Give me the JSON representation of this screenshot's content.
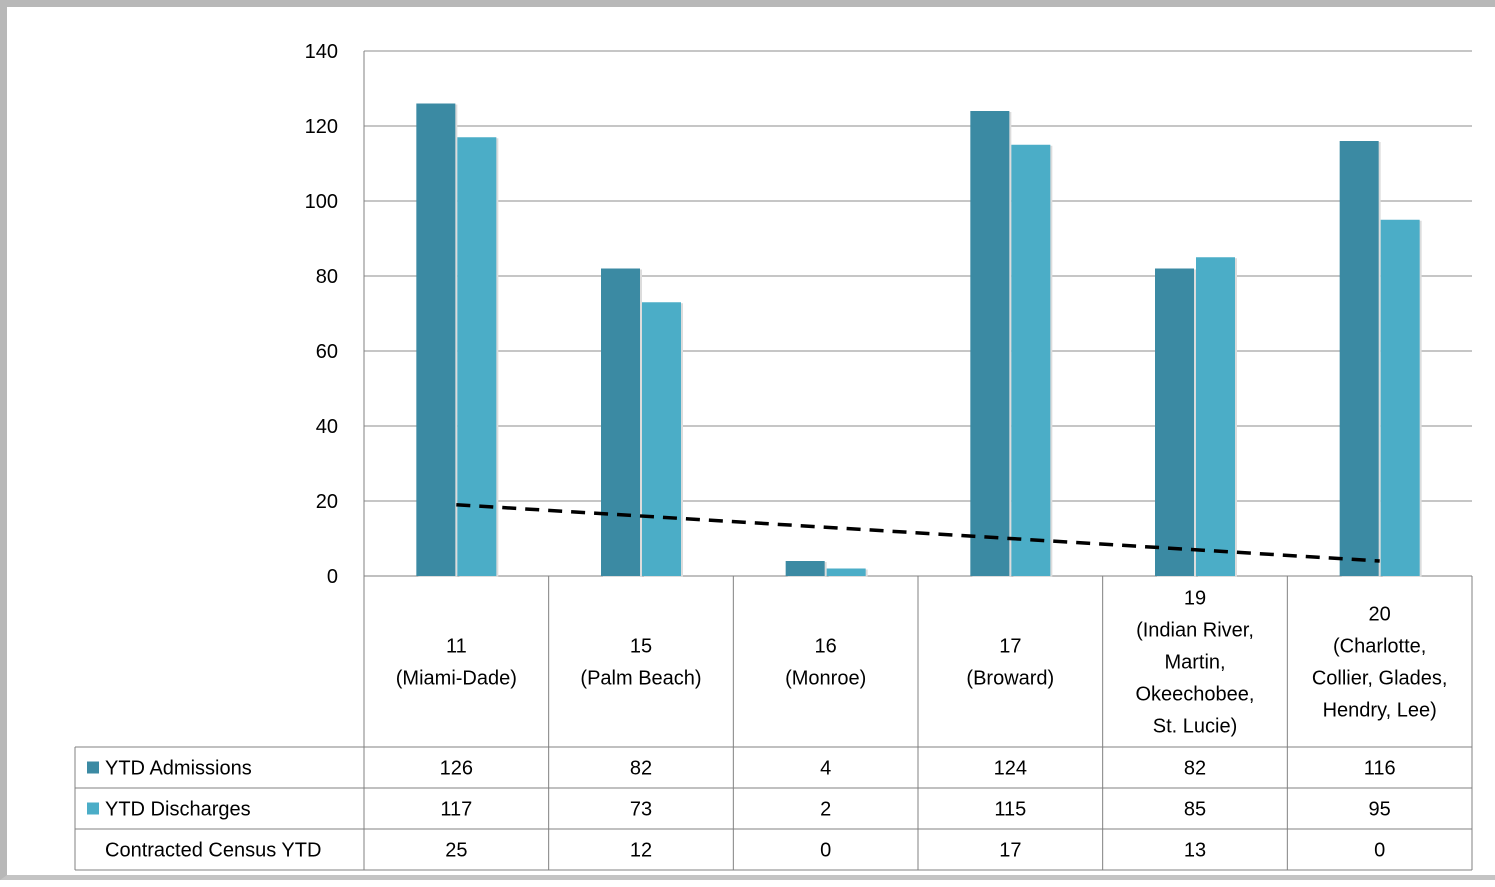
{
  "chart_data": {
    "type": "bar",
    "title": "",
    "xlabel": "",
    "ylabel": "",
    "ylim": [
      0,
      140
    ],
    "yticks": [
      0,
      20,
      40,
      60,
      80,
      100,
      120,
      140
    ],
    "grid": true,
    "legend": "data-table",
    "categories": [
      [
        "11",
        "(Miami-Dade)"
      ],
      [
        "15",
        "(Palm Beach)"
      ],
      [
        "16",
        "(Monroe)"
      ],
      [
        "17",
        "(Broward)"
      ],
      [
        "19",
        "(Indian River,",
        "Martin,",
        "Okeechobee,",
        "St. Lucie)"
      ],
      [
        "20",
        "(Charlotte,",
        "Collier, Glades,",
        "Hendry, Lee)"
      ]
    ],
    "series": [
      {
        "name": "YTD Admissions",
        "type": "bar",
        "color": "#3b8aa3",
        "values": [
          126,
          82,
          4,
          124,
          82,
          116
        ]
      },
      {
        "name": "YTD Discharges",
        "type": "bar",
        "color": "#4badc7",
        "values": [
          117,
          73,
          2,
          115,
          85,
          95
        ]
      },
      {
        "name": "Contracted Census YTD",
        "type": "table-only",
        "values": [
          25,
          12,
          0,
          17,
          13,
          0
        ]
      }
    ],
    "trendline": {
      "style": "dashed",
      "color": "#000000",
      "start": [
        0,
        19
      ],
      "end": [
        5,
        4
      ]
    }
  }
}
